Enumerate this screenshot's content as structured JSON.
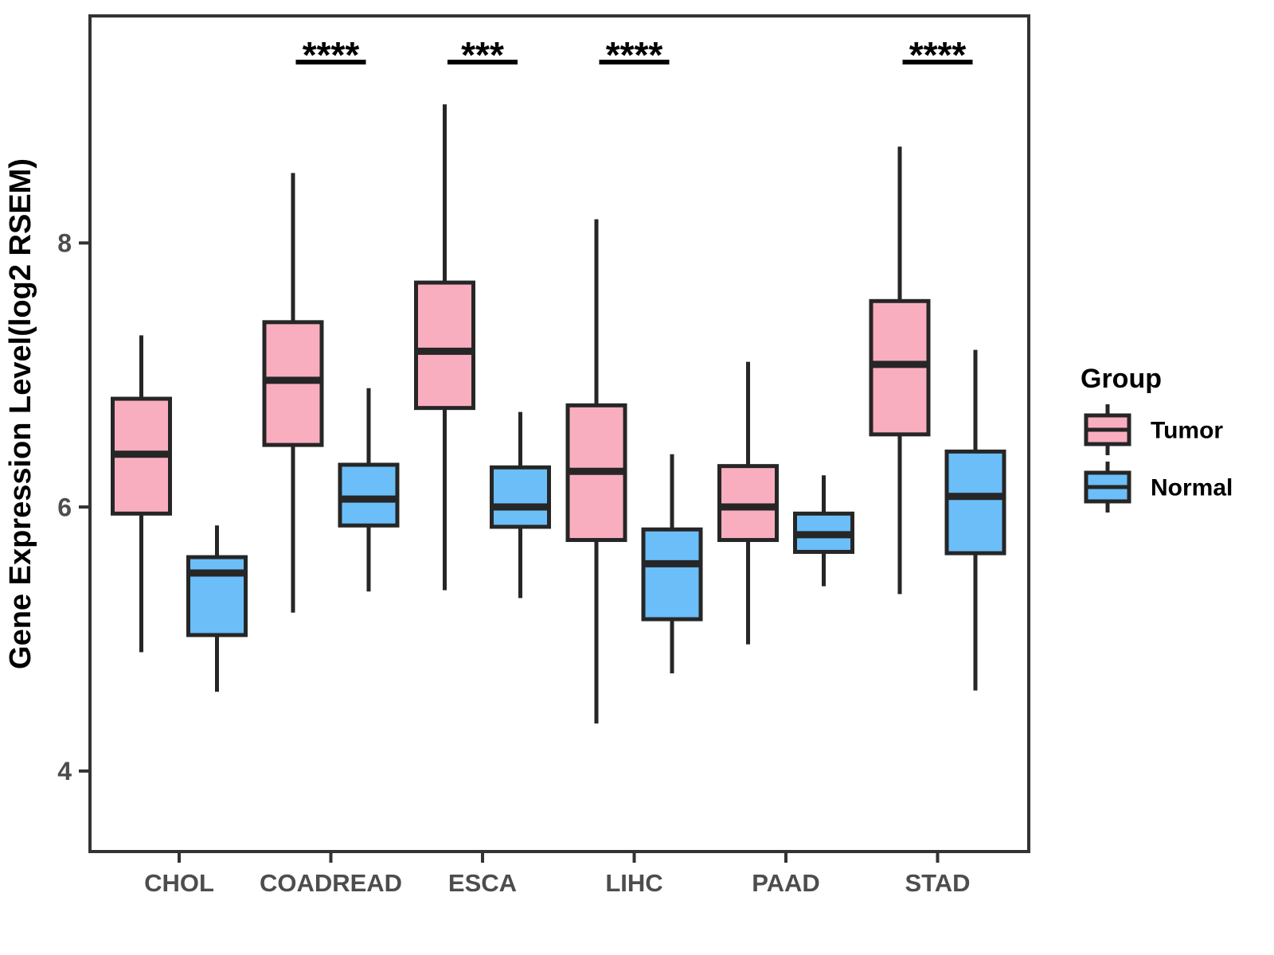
{
  "chart_data": {
    "type": "boxplot",
    "ylabel": "Gene Expression Level(log2 RSEM)",
    "xlabel": "",
    "categories": [
      "CHOL",
      "COADREAD",
      "ESCA",
      "LIHC",
      "PAAD",
      "STAD"
    ],
    "yticks": [
      4,
      6,
      8
    ],
    "ylim": [
      3.39,
      9.72
    ],
    "grid": false,
    "series": [
      {
        "name": "Tumor",
        "color": "#F9AEC0",
        "boxes": [
          {
            "category": "CHOL",
            "low": 4.9,
            "q1": 5.95,
            "median": 6.4,
            "q3": 6.82,
            "high": 7.3
          },
          {
            "category": "COADREAD",
            "low": 5.2,
            "q1": 6.47,
            "median": 6.96,
            "q3": 7.4,
            "high": 8.53
          },
          {
            "category": "ESCA",
            "low": 5.37,
            "q1": 6.75,
            "median": 7.18,
            "q3": 7.7,
            "high": 9.05
          },
          {
            "category": "LIHC",
            "low": 4.36,
            "q1": 5.75,
            "median": 6.27,
            "q3": 6.77,
            "high": 8.18
          },
          {
            "category": "PAAD",
            "low": 4.96,
            "q1": 5.75,
            "median": 6.0,
            "q3": 6.31,
            "high": 7.1
          },
          {
            "category": "STAD",
            "low": 5.34,
            "q1": 6.55,
            "median": 7.08,
            "q3": 7.56,
            "high": 8.73
          }
        ]
      },
      {
        "name": "Normal",
        "color": "#6BBEF8",
        "boxes": [
          {
            "category": "CHOL",
            "low": 4.6,
            "q1": 5.03,
            "median": 5.5,
            "q3": 5.62,
            "high": 5.86
          },
          {
            "category": "COADREAD",
            "low": 5.36,
            "q1": 5.86,
            "median": 6.06,
            "q3": 6.32,
            "high": 6.9
          },
          {
            "category": "ESCA",
            "low": 5.31,
            "q1": 5.85,
            "median": 6.0,
            "q3": 6.3,
            "high": 6.72
          },
          {
            "category": "LIHC",
            "low": 4.74,
            "q1": 5.15,
            "median": 5.57,
            "q3": 5.83,
            "high": 6.4
          },
          {
            "category": "PAAD",
            "low": 5.4,
            "q1": 5.66,
            "median": 5.79,
            "q3": 5.95,
            "high": 6.24
          },
          {
            "category": "STAD",
            "low": 4.61,
            "q1": 5.65,
            "median": 6.08,
            "q3": 6.42,
            "high": 7.19
          }
        ]
      }
    ],
    "significance": [
      {
        "category": "COADREAD",
        "label": "****"
      },
      {
        "category": "ESCA",
        "label": "***"
      },
      {
        "category": "LIHC",
        "label": "****"
      },
      {
        "category": "STAD",
        "label": "****"
      }
    ],
    "legend": {
      "title": "Group",
      "position": "right",
      "entries": [
        "Tumor",
        "Normal"
      ]
    }
  },
  "style": {
    "tumor_fill": "#F9AEC0",
    "normal_fill": "#6BBEF8",
    "box_border": "#262626",
    "axis_color": "#333333",
    "tick_label_color": "#4d4d4d",
    "sig_color": "#000000",
    "background": "#ffffff"
  }
}
